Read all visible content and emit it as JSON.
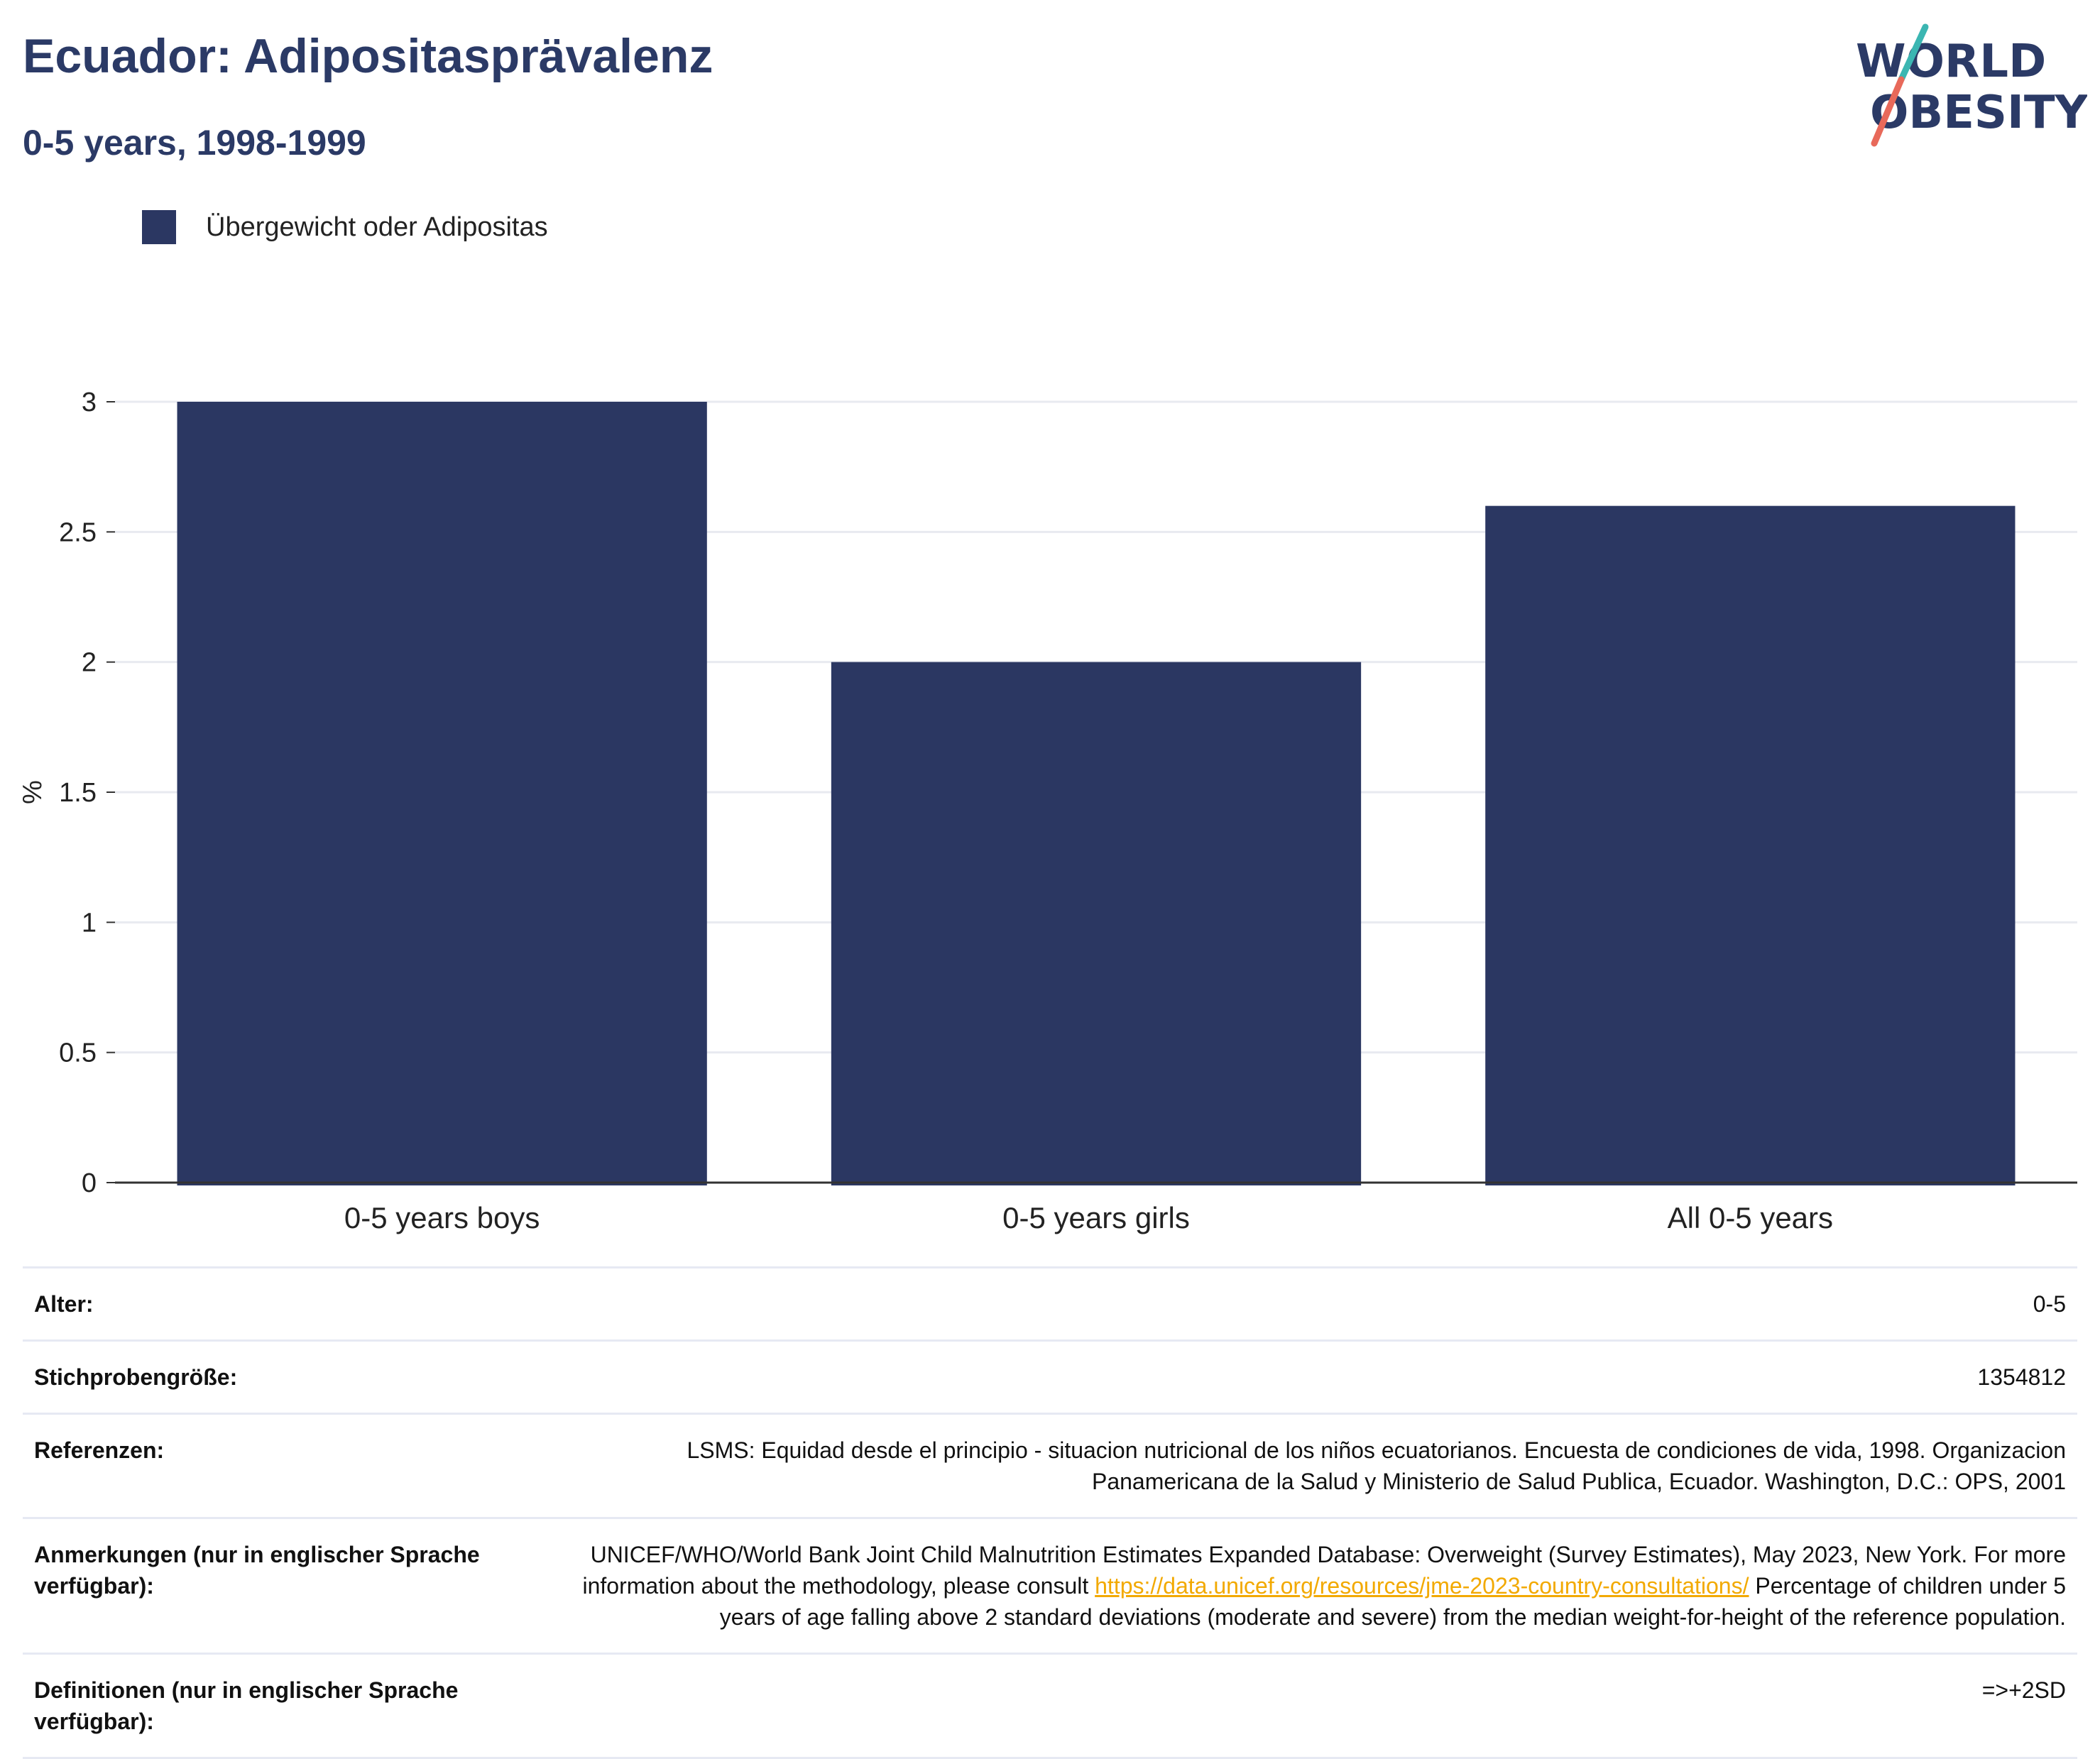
{
  "header": {
    "title": "Ecuador: Adipositasprävalenz",
    "subtitle": "0-5 years, 1998-1999"
  },
  "logo": {
    "line1": "WORLD",
    "line2": "OBESITY",
    "accent_teal": "#3bb6b2",
    "accent_coral": "#e8695a"
  },
  "legend": {
    "items": [
      {
        "label": "Übergewicht oder Adipositas",
        "color": "#2b3762"
      }
    ]
  },
  "chart_data": {
    "type": "bar",
    "categories": [
      "0-5 years boys",
      "0-5 years girls",
      "All 0-5 years"
    ],
    "series": [
      {
        "name": "Übergewicht oder Adipositas",
        "values": [
          3.0,
          2.0,
          2.6
        ],
        "color": "#2b3762"
      }
    ],
    "ylabel": "%",
    "ylim": [
      0,
      3
    ],
    "yticks": [
      0,
      0.5,
      1,
      1.5,
      2,
      2.5,
      3
    ],
    "grid": true,
    "legend_position": "top-left"
  },
  "meta": {
    "rows": [
      {
        "label": "Alter:",
        "value": "0-5"
      },
      {
        "label": "Stichprobengröße:",
        "value": "1354812"
      },
      {
        "label": "Referenzen:",
        "value": "LSMS: Equidad desde el principio - situacion nutricional de los niños ecuatorianos. Encuesta de condiciones de vida, 1998. Organizacion Panamericana de la Salud y Ministerio de Salud Publica, Ecuador. Washington, D.C.: OPS, 2001"
      },
      {
        "label": "Anmerkungen (nur in englischer Sprache verfügbar):",
        "value_before": "UNICEF/WHO/World Bank Joint Child Malnutrition Estimates Expanded Database: Overweight (Survey Estimates), May 2023, New York. For more information about the methodology, please consult ",
        "link": "https://data.unicef.org/resources/jme-2023-country-consultations/",
        "value_after": " Percentage of children under 5 years of age falling above 2 standard deviations (moderate and severe) from the median weight-for-height of the reference population."
      },
      {
        "label": "Definitionen (nur in englischer Sprache verfügbar):",
        "value": "=>+2SD"
      }
    ]
  }
}
